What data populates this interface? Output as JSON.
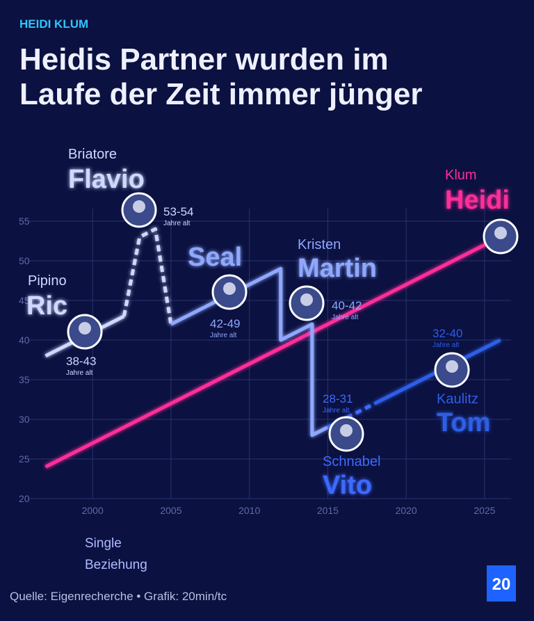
{
  "kicker": "HEIDI KLUM",
  "chart_data": {
    "type": "line",
    "title_lines": [
      "Heidis Partner wurden im",
      "Laufe der Zeit immer jünger"
    ],
    "xlim": [
      1996,
      2027
    ],
    "xticks": [
      2000,
      2005,
      2010,
      2015,
      2020,
      2025
    ],
    "ylim": [
      20,
      55
    ],
    "yticks": [
      20,
      25,
      30,
      35,
      40,
      45,
      50,
      55
    ],
    "grid": true,
    "series": [
      {
        "name": "Heidi",
        "color": "#ff2d9a",
        "x": [
          1997,
          2026
        ],
        "values": [
          24,
          53
        ]
      }
    ],
    "segments": [
      {
        "style": "relationship",
        "color": "#cfd9ff",
        "x": [
          1997,
          2002
        ],
        "values": [
          38,
          43
        ]
      },
      {
        "style": "single",
        "color": "#cfd9ff",
        "x": [
          2002,
          2003,
          2004,
          2005
        ],
        "values": [
          43,
          53,
          54,
          42
        ]
      },
      {
        "style": "relationship",
        "color": "#8fa8ff",
        "x": [
          2005,
          2012,
          2012,
          2014,
          2014,
          2015
        ],
        "values": [
          42,
          49,
          40,
          42,
          28,
          29
        ]
      },
      {
        "style": "single",
        "color": "#3d6bff",
        "x": [
          2015,
          2018
        ],
        "values": [
          29,
          32
        ]
      },
      {
        "style": "relationship",
        "color": "#2f5ee8",
        "x": [
          2018,
          2026
        ],
        "values": [
          32,
          40
        ]
      }
    ],
    "people": [
      {
        "small": "Pipino",
        "big": "Ric",
        "ages": "38-43",
        "unit": "Jahre alt",
        "color": "#cfd9ff"
      },
      {
        "small": "Briatore",
        "big": "Flavio",
        "ages": "53-54",
        "unit": "Jahre alt",
        "color": "#cfd9ff"
      },
      {
        "big": "Seal",
        "ages": "42-49",
        "unit": "Jahre alt",
        "color": "#8fa8ff"
      },
      {
        "small": "Kristen",
        "big": "Martin",
        "ages": "40-42",
        "unit": "Jahre alt",
        "color": "#8fa8ff"
      },
      {
        "small": "Schnabel",
        "big": "Vito",
        "ages": "28-31",
        "unit": "Jahre alt",
        "color": "#3d6bff"
      },
      {
        "small": "Kaulitz",
        "big": "Tom",
        "ages": "32-40",
        "unit": "Jahre alt",
        "color": "#2f5ee8"
      },
      {
        "small": "Klum",
        "big": "Heidi",
        "color": "#ff2d9a"
      }
    ],
    "legend": [
      {
        "label": "Single",
        "style": "single"
      },
      {
        "label": "Beziehung",
        "style": "relationship"
      }
    ]
  },
  "footer": {
    "source": "Quelle: Eigenrecherche • Grafik: 20min/tc",
    "logo": "20"
  }
}
